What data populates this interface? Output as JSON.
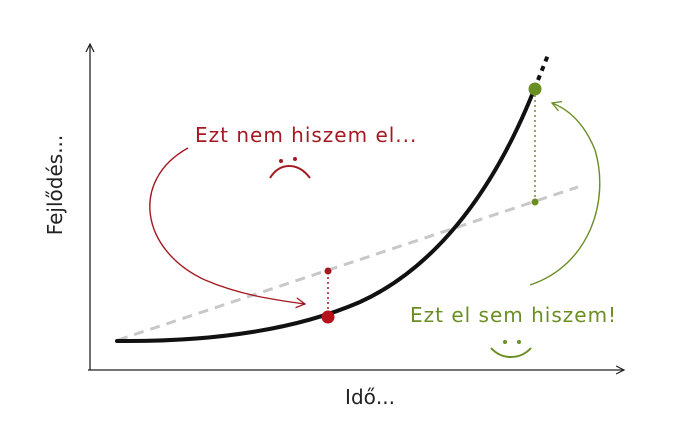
{
  "axes": {
    "x_label": "Idő...",
    "y_label": "Fejlődés..."
  },
  "annotations": {
    "pessimist": {
      "text": "Ezt nem hiszem el...",
      "mood": "sad-face",
      "color": "#a31a22"
    },
    "optimist": {
      "text": "Ezt el sem hiszem!",
      "mood": "happy-face",
      "color": "#6b8e23"
    }
  },
  "colors": {
    "curve": "#111111",
    "linear": "#c8c8c8",
    "axis": "#222222"
  }
}
